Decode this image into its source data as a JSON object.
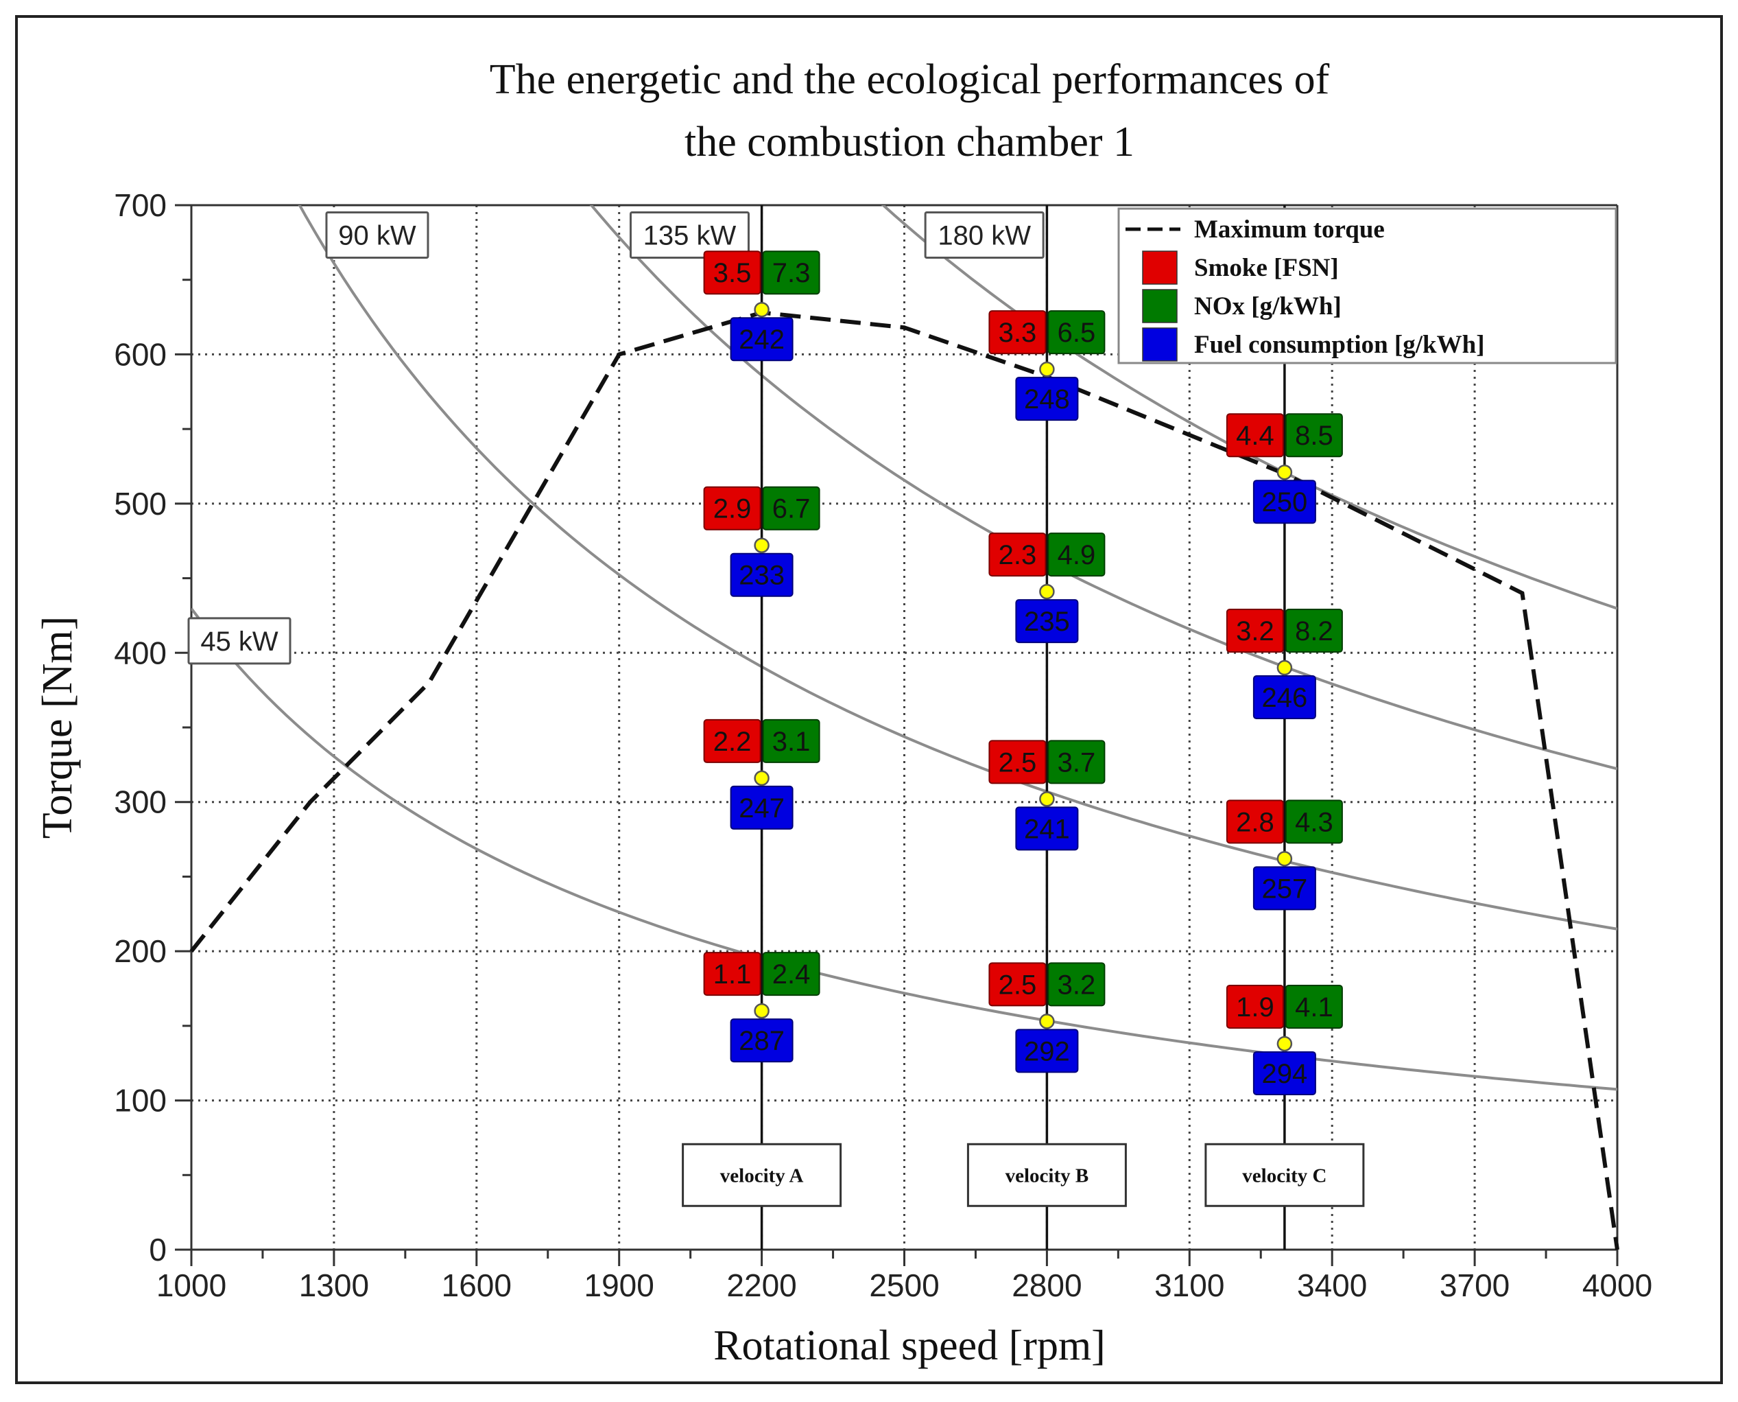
{
  "chart_data": {
    "type": "line",
    "title_lines": [
      "The energetic and the ecological performances of",
      "the combustion chamber 1"
    ],
    "xlabel": "Rotational speed [rpm]",
    "ylabel": "Torque [Nm]",
    "xlim": [
      1000,
      4000
    ],
    "ylim": [
      0,
      700
    ],
    "xticks": [
      1000,
      1300,
      1600,
      1900,
      2200,
      2500,
      2800,
      3100,
      3400,
      3700,
      4000
    ],
    "yticks": [
      0,
      100,
      200,
      300,
      400,
      500,
      600,
      700
    ],
    "grid": true,
    "max_torque": {
      "name": "Maximum torque",
      "x": [
        1000,
        1250,
        1500,
        1900,
        2200,
        2500,
        2800,
        3300,
        3800,
        4000
      ],
      "y": [
        200,
        300,
        380,
        600,
        628,
        618,
        585,
        520,
        440,
        0
      ]
    },
    "power_curves": [
      {
        "label": "45 kW",
        "kw": 45,
        "label_x": 1000,
        "label_y": 408
      },
      {
        "label": "90 kW",
        "kw": 90,
        "label_x": 1290,
        "label_y": 680
      },
      {
        "label": "135 kW",
        "kw": 135,
        "label_x": 1930,
        "label_y": 680
      },
      {
        "label": "180 kW",
        "kw": 180,
        "label_x": 2550,
        "label_y": 680
      }
    ],
    "velocities": [
      {
        "label": "velocity A",
        "rpm": 2200
      },
      {
        "label": "velocity B",
        "rpm": 2800
      },
      {
        "label": "velocity C",
        "rpm": 3300
      }
    ],
    "legend": [
      {
        "label": "Maximum torque",
        "kind": "dashed"
      },
      {
        "label": "Smoke [FSN]",
        "kind": "box",
        "color": "#e00000"
      },
      {
        "label": "NOx [g/kWh]",
        "kind": "box",
        "color": "#007a00"
      },
      {
        "label": "Fuel consumption [g/kWh]",
        "kind": "box",
        "color": "#0000e0"
      }
    ],
    "colors": {
      "smoke": "#e00000",
      "nox": "#007a00",
      "fuel": "#0000e0",
      "point": "#ffff00",
      "curve": "#8c8c8c"
    },
    "points": [
      {
        "rpm": 2200,
        "torque": 630,
        "smoke": "3.5",
        "nox": "7.3",
        "fuel": "242"
      },
      {
        "rpm": 2200,
        "torque": 472,
        "smoke": "2.9",
        "nox": "6.7",
        "fuel": "233"
      },
      {
        "rpm": 2200,
        "torque": 316,
        "smoke": "2.2",
        "nox": "3.1",
        "fuel": "247"
      },
      {
        "rpm": 2200,
        "torque": 160,
        "smoke": "1.1",
        "nox": "2.4",
        "fuel": "287"
      },
      {
        "rpm": 2800,
        "torque": 590,
        "smoke": "3.3",
        "nox": "6.5",
        "fuel": "248"
      },
      {
        "rpm": 2800,
        "torque": 441,
        "smoke": "2.3",
        "nox": "4.9",
        "fuel": "235"
      },
      {
        "rpm": 2800,
        "torque": 302,
        "smoke": "2.5",
        "nox": "3.7",
        "fuel": "241"
      },
      {
        "rpm": 2800,
        "torque": 153,
        "smoke": "2.5",
        "nox": "3.2",
        "fuel": "292"
      },
      {
        "rpm": 3300,
        "torque": 521,
        "smoke": "4.4",
        "nox": "8.5",
        "fuel": "250"
      },
      {
        "rpm": 3300,
        "torque": 390,
        "smoke": "3.2",
        "nox": "8.2",
        "fuel": "246"
      },
      {
        "rpm": 3300,
        "torque": 262,
        "smoke": "2.8",
        "nox": "4.3",
        "fuel": "257"
      },
      {
        "rpm": 3300,
        "torque": 138,
        "smoke": "1.9",
        "nox": "4.1",
        "fuel": "294"
      }
    ]
  }
}
